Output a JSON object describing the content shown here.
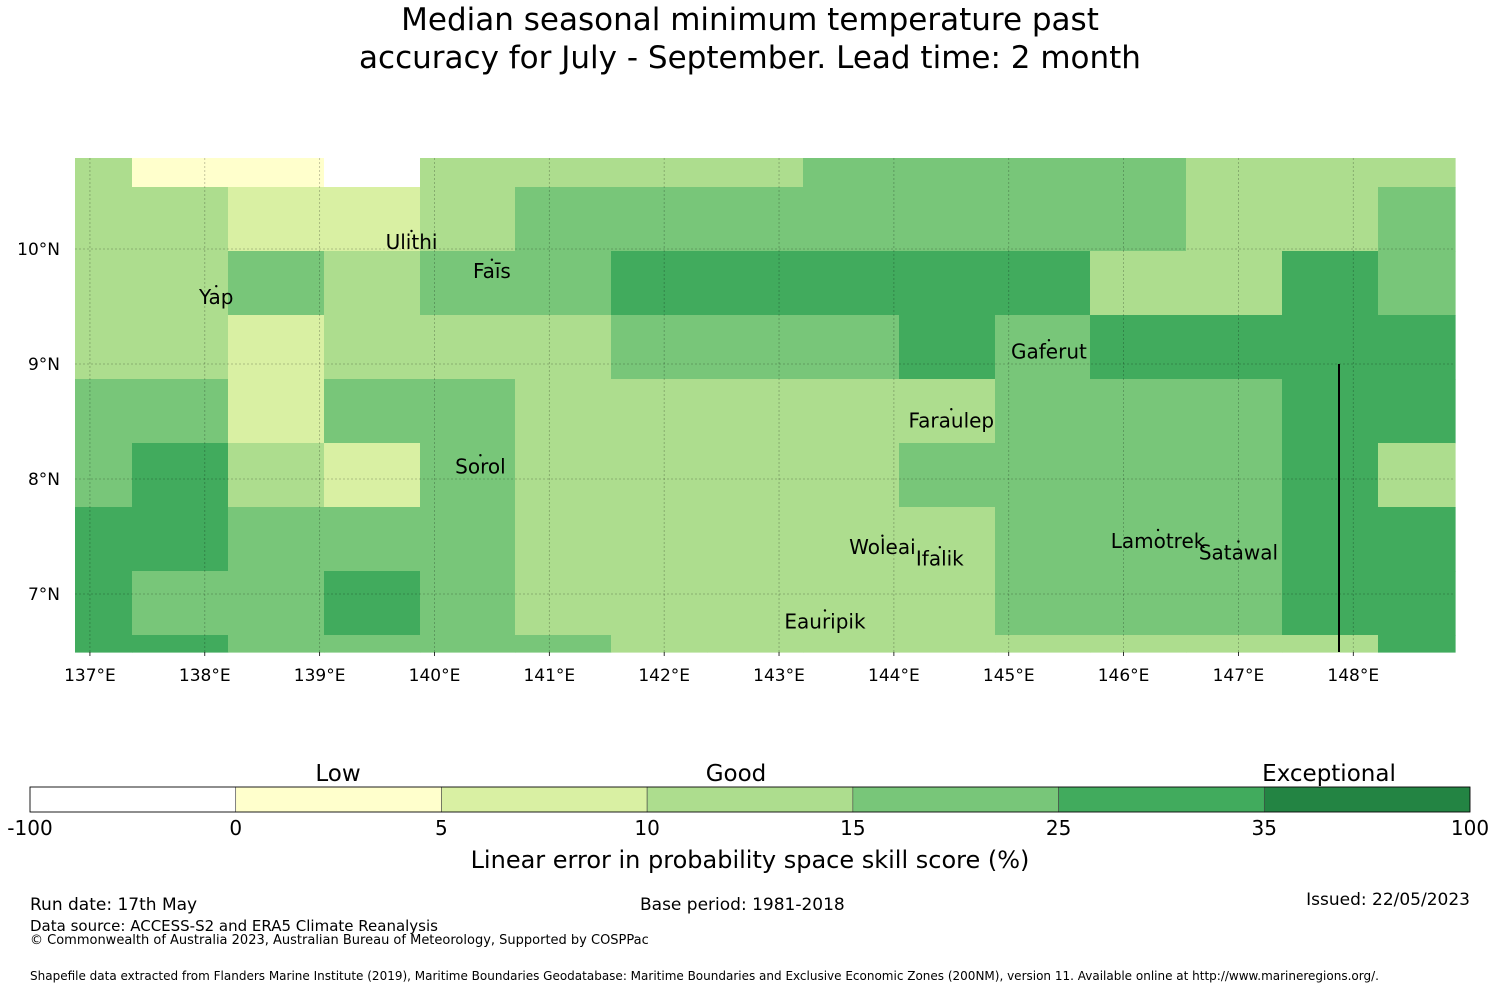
{
  "title": {
    "line1": "Median seasonal minimum temperature past",
    "line2": "accuracy for July - September. Lead time: 2 month"
  },
  "map": {
    "lon_range": [
      137,
      149
    ],
    "lat_range": [
      6.5,
      10.8
    ],
    "lon_ticks": [
      "137°E",
      "138°E",
      "139°E",
      "140°E",
      "141°E",
      "142°E",
      "143°E",
      "144°E",
      "145°E",
      "146°E",
      "147°E",
      "148°E"
    ],
    "lat_ticks": [
      "10°N",
      "9°N",
      "8°N",
      "7°N"
    ],
    "skill_grid_rows_north_to_south": [
      "3110333344443333",
      "3322344444443344",
      "3343445555533544",
      "3323334445455555",
      "4424433333444553",
      "4532433334444535",
      "5544433333444555",
      "5445433333444553",
      "5544443333333353",
      "5555445333433555"
    ],
    "places": [
      {
        "name": "Ulithi",
        "lon": 139.8,
        "lat": 10.0
      },
      {
        "name": "Faīs",
        "lon": 140.5,
        "lat": 9.75
      },
      {
        "name": "Yap",
        "lon": 138.1,
        "lat": 9.52
      },
      {
        "name": "Gaferut",
        "lon": 145.35,
        "lat": 9.05
      },
      {
        "name": "Faraulep",
        "lon": 144.5,
        "lat": 8.45
      },
      {
        "name": "Sorol",
        "lon": 140.4,
        "lat": 8.05
      },
      {
        "name": "Woleai",
        "lon": 143.9,
        "lat": 7.35
      },
      {
        "name": "Ifalik",
        "lon": 144.4,
        "lat": 7.25
      },
      {
        "name": "Lamotrek",
        "lon": 146.3,
        "lat": 7.4
      },
      {
        "name": "Satawal",
        "lon": 147.0,
        "lat": 7.3
      },
      {
        "name": "Eauripik",
        "lon": 143.4,
        "lat": 6.7
      }
    ]
  },
  "legend": {
    "categories": [
      "Low",
      "Good",
      "Exceptional"
    ],
    "ticks": [
      "-100",
      "0",
      "5",
      "10",
      "15",
      "25",
      "35",
      "100"
    ],
    "colors": [
      "#ffffff",
      "#ffffcc",
      "#d9f0a3",
      "#addd8e",
      "#78c679",
      "#41ab5d",
      "#238443"
    ],
    "title": "Linear error in probability space skill score (%)"
  },
  "footer": {
    "run_date": "Run date: 17th May",
    "data_source": "Data source: ACCESS-S2 and ERA5 Climate Reanalysis",
    "copyright": "© Commonwealth of Australia 2023, Australian Bureau of Meteorology, Supported by COSPPac",
    "base_period": "Base period: 1981-2018",
    "issued": "Issued: 22/05/2023",
    "shapefile": "Shapefile data extracted from Flanders Marine Institute (2019), Maritime Boundaries Geodatabase: Maritime Boundaries and Exclusive Economic Zones (200NM), version 11. Available online at http://www.marineregions.org/."
  }
}
